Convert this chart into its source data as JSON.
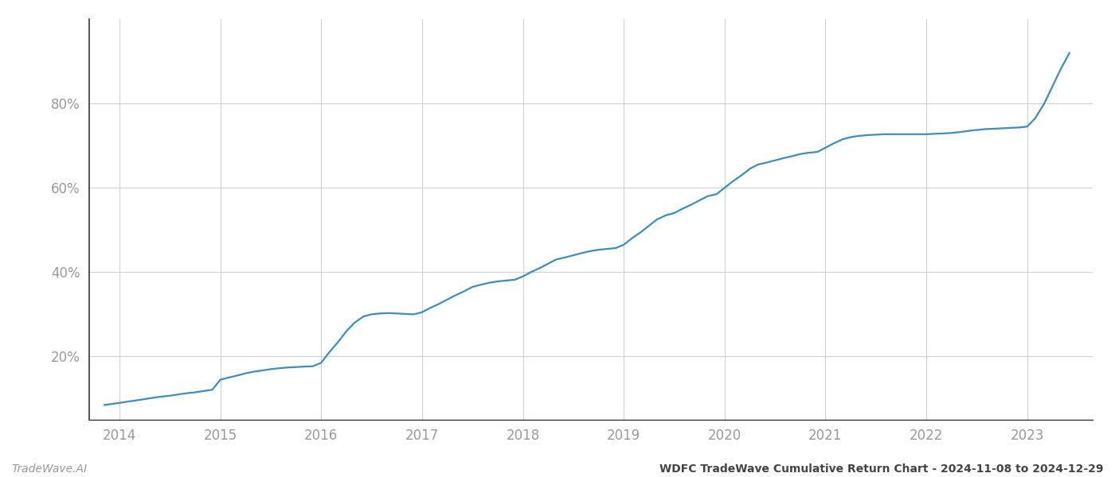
{
  "title": "WDFC TradeWave Cumulative Return Chart - 2024-11-08 to 2024-12-29",
  "watermark": "TradeWave.AI",
  "line_color": "#3a8fbf",
  "background_color": "#ffffff",
  "grid_color": "#d0d0d0",
  "x_years": [
    2014,
    2015,
    2016,
    2017,
    2018,
    2019,
    2020,
    2021,
    2022,
    2023
  ],
  "data_x": [
    2013.85,
    2014.0,
    2014.08,
    2014.17,
    2014.25,
    2014.33,
    2014.42,
    2014.5,
    2014.58,
    2014.67,
    2014.75,
    2014.83,
    2014.92,
    2015.0,
    2015.08,
    2015.17,
    2015.25,
    2015.33,
    2015.42,
    2015.5,
    2015.58,
    2015.67,
    2015.75,
    2015.83,
    2015.92,
    2016.0,
    2016.08,
    2016.17,
    2016.25,
    2016.33,
    2016.42,
    2016.5,
    2016.58,
    2016.67,
    2016.75,
    2016.83,
    2016.92,
    2017.0,
    2017.08,
    2017.17,
    2017.25,
    2017.33,
    2017.42,
    2017.5,
    2017.58,
    2017.67,
    2017.75,
    2017.83,
    2017.92,
    2018.0,
    2018.08,
    2018.17,
    2018.25,
    2018.33,
    2018.42,
    2018.5,
    2018.58,
    2018.67,
    2018.75,
    2018.83,
    2018.92,
    2019.0,
    2019.08,
    2019.17,
    2019.25,
    2019.33,
    2019.42,
    2019.5,
    2019.58,
    2019.67,
    2019.75,
    2019.83,
    2019.92,
    2020.0,
    2020.08,
    2020.17,
    2020.25,
    2020.33,
    2020.42,
    2020.5,
    2020.58,
    2020.67,
    2020.75,
    2020.83,
    2020.92,
    2021.0,
    2021.08,
    2021.17,
    2021.25,
    2021.33,
    2021.42,
    2021.5,
    2021.58,
    2021.67,
    2021.75,
    2021.83,
    2021.92,
    2022.0,
    2022.08,
    2022.17,
    2022.25,
    2022.33,
    2022.42,
    2022.5,
    2022.58,
    2022.67,
    2022.75,
    2022.83,
    2022.92,
    2023.0,
    2023.08,
    2023.17,
    2023.25,
    2023.33,
    2023.42
  ],
  "data_y": [
    8.5,
    9.0,
    9.3,
    9.6,
    9.9,
    10.2,
    10.5,
    10.7,
    11.0,
    11.3,
    11.5,
    11.8,
    12.1,
    14.5,
    15.0,
    15.5,
    16.0,
    16.4,
    16.7,
    17.0,
    17.2,
    17.4,
    17.5,
    17.6,
    17.7,
    18.5,
    21.0,
    23.5,
    26.0,
    28.0,
    29.5,
    30.0,
    30.2,
    30.3,
    30.2,
    30.1,
    30.0,
    30.5,
    31.5,
    32.5,
    33.5,
    34.5,
    35.5,
    36.5,
    37.0,
    37.5,
    37.8,
    38.0,
    38.2,
    39.0,
    40.0,
    41.0,
    42.0,
    43.0,
    43.5,
    44.0,
    44.5,
    45.0,
    45.3,
    45.5,
    45.7,
    46.5,
    48.0,
    49.5,
    51.0,
    52.5,
    53.5,
    54.0,
    55.0,
    56.0,
    57.0,
    58.0,
    58.5,
    60.0,
    61.5,
    63.0,
    64.5,
    65.5,
    66.0,
    66.5,
    67.0,
    67.5,
    68.0,
    68.3,
    68.5,
    69.5,
    70.5,
    71.5,
    72.0,
    72.3,
    72.5,
    72.6,
    72.7,
    72.7,
    72.7,
    72.7,
    72.7,
    72.7,
    72.8,
    72.9,
    73.0,
    73.2,
    73.5,
    73.7,
    73.9,
    74.0,
    74.1,
    74.2,
    74.3,
    74.5,
    76.5,
    80.0,
    84.0,
    88.0,
    92.0
  ],
  "ylim": [
    5,
    100
  ],
  "xlim": [
    2013.7,
    2023.65
  ],
  "yticks": [
    20,
    40,
    60,
    80
  ],
  "title_fontsize": 10,
  "tick_fontsize": 12,
  "footer_fontsize": 10,
  "line_width": 1.6,
  "tick_color": "#999999",
  "axis_color": "#333333",
  "left_spine_color": "#333333"
}
